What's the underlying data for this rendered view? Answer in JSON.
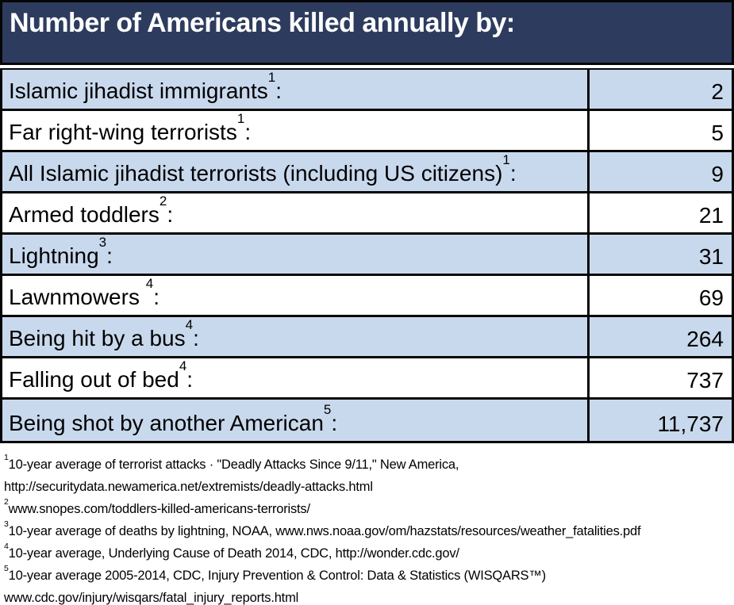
{
  "title": "Number of Americans killed annually by:",
  "colors": {
    "header_bg": "#2d3c5e",
    "header_text": "#ffffff",
    "row_bg": "#ffffff",
    "row_alt_bg": "#c9d9ed",
    "border": "#060606",
    "text": "#000000"
  },
  "table": {
    "rows": [
      {
        "label": "Islamic jihadist immigrants",
        "sup": "1",
        "colon": ":",
        "value": "2"
      },
      {
        "label": "Far right-wing terrorists",
        "sup": "1",
        "colon": ":",
        "value": "5"
      },
      {
        "label": "All Islamic jihadist terrorists (including US citizens)",
        "sup": "1",
        "colon": ":",
        "value": "9"
      },
      {
        "label": "Armed toddlers",
        "sup": "2",
        "colon": ":",
        "value": "21"
      },
      {
        "label": "Lightning",
        "sup": "3",
        "colon": ":",
        "value": "31"
      },
      {
        "label": "Lawnmowers ",
        "sup": "4",
        "colon": ":",
        "value": "69"
      },
      {
        "label": "Being hit by a bus",
        "sup": "4",
        "colon": ":",
        "value": "264"
      },
      {
        "label": "Falling out of bed",
        "sup": "4",
        "colon": ":",
        "value": "737"
      },
      {
        "label": "Being shot by another American",
        "sup": "5",
        "colon": ":",
        "value": "11,737"
      }
    ]
  },
  "footnotes": [
    {
      "sup": "1",
      "lines": [
        "10-year average of terrorist attacks · \"Deadly Attacks Since 9/11,\" New America,",
        "http://securitydata.newamerica.net/extremists/deadly-attacks.html"
      ]
    },
    {
      "sup": "2",
      "lines": [
        "www.snopes.com/toddlers-killed-americans-terrorists/"
      ]
    },
    {
      "sup": "3",
      "lines": [
        "10-year average of deaths by lightning, NOAA, www.nws.noaa.gov/om/hazstats/resources/weather_fatalities.pdf"
      ]
    },
    {
      "sup": "4",
      "lines": [
        "10-year average, Underlying Cause of Death 2014, CDC, http://wonder.cdc.gov/"
      ]
    },
    {
      "sup": "5",
      "lines": [
        "10-year average 2005-2014, CDC, Injury Prevention & Control: Data & Statistics (WISQARS™)",
        "www.cdc.gov/injury/wisqars/fatal_injury_reports.html"
      ]
    }
  ],
  "chart_data": {
    "type": "table",
    "title": "Number of Americans killed annually by:",
    "categories": [
      "Islamic jihadist immigrants",
      "Far right-wing terrorists",
      "All Islamic jihadist terrorists (including US citizens)",
      "Armed toddlers",
      "Lightning",
      "Lawnmowers",
      "Being hit by a bus",
      "Falling out of bed",
      "Being shot by another American"
    ],
    "values": [
      2,
      5,
      9,
      21,
      31,
      69,
      264,
      737,
      11737
    ],
    "layout": {
      "alternating_row_shading": true,
      "value_column_align": "right"
    }
  }
}
